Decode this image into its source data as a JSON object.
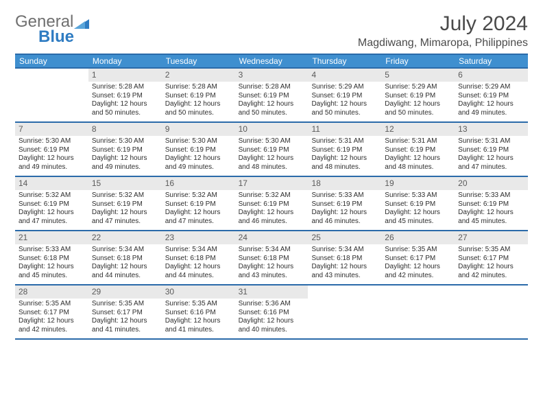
{
  "brand": {
    "part1": "General",
    "part2": "Blue"
  },
  "title": "July 2024",
  "location": "Magdiwang, Mimaropa, Philippines",
  "colors": {
    "header_bg": "#3f8fcf",
    "header_border": "#2a6aa9",
    "daynum_bg": "#e9e9e9",
    "text": "#333333",
    "brand_gray": "#6f6f6f",
    "brand_blue": "#2f7cc2"
  },
  "weekday_labels": [
    "Sunday",
    "Monday",
    "Tuesday",
    "Wednesday",
    "Thursday",
    "Friday",
    "Saturday"
  ],
  "weeks": [
    [
      {
        "n": "",
        "sr": "",
        "ss": "",
        "dl": ""
      },
      {
        "n": "1",
        "sr": "5:28 AM",
        "ss": "6:19 PM",
        "dl": "12 hours and 50 minutes."
      },
      {
        "n": "2",
        "sr": "5:28 AM",
        "ss": "6:19 PM",
        "dl": "12 hours and 50 minutes."
      },
      {
        "n": "3",
        "sr": "5:28 AM",
        "ss": "6:19 PM",
        "dl": "12 hours and 50 minutes."
      },
      {
        "n": "4",
        "sr": "5:29 AM",
        "ss": "6:19 PM",
        "dl": "12 hours and 50 minutes."
      },
      {
        "n": "5",
        "sr": "5:29 AM",
        "ss": "6:19 PM",
        "dl": "12 hours and 50 minutes."
      },
      {
        "n": "6",
        "sr": "5:29 AM",
        "ss": "6:19 PM",
        "dl": "12 hours and 49 minutes."
      }
    ],
    [
      {
        "n": "7",
        "sr": "5:30 AM",
        "ss": "6:19 PM",
        "dl": "12 hours and 49 minutes."
      },
      {
        "n": "8",
        "sr": "5:30 AM",
        "ss": "6:19 PM",
        "dl": "12 hours and 49 minutes."
      },
      {
        "n": "9",
        "sr": "5:30 AM",
        "ss": "6:19 PM",
        "dl": "12 hours and 49 minutes."
      },
      {
        "n": "10",
        "sr": "5:30 AM",
        "ss": "6:19 PM",
        "dl": "12 hours and 48 minutes."
      },
      {
        "n": "11",
        "sr": "5:31 AM",
        "ss": "6:19 PM",
        "dl": "12 hours and 48 minutes."
      },
      {
        "n": "12",
        "sr": "5:31 AM",
        "ss": "6:19 PM",
        "dl": "12 hours and 48 minutes."
      },
      {
        "n": "13",
        "sr": "5:31 AM",
        "ss": "6:19 PM",
        "dl": "12 hours and 47 minutes."
      }
    ],
    [
      {
        "n": "14",
        "sr": "5:32 AM",
        "ss": "6:19 PM",
        "dl": "12 hours and 47 minutes."
      },
      {
        "n": "15",
        "sr": "5:32 AM",
        "ss": "6:19 PM",
        "dl": "12 hours and 47 minutes."
      },
      {
        "n": "16",
        "sr": "5:32 AM",
        "ss": "6:19 PM",
        "dl": "12 hours and 47 minutes."
      },
      {
        "n": "17",
        "sr": "5:32 AM",
        "ss": "6:19 PM",
        "dl": "12 hours and 46 minutes."
      },
      {
        "n": "18",
        "sr": "5:33 AM",
        "ss": "6:19 PM",
        "dl": "12 hours and 46 minutes."
      },
      {
        "n": "19",
        "sr": "5:33 AM",
        "ss": "6:19 PM",
        "dl": "12 hours and 45 minutes."
      },
      {
        "n": "20",
        "sr": "5:33 AM",
        "ss": "6:19 PM",
        "dl": "12 hours and 45 minutes."
      }
    ],
    [
      {
        "n": "21",
        "sr": "5:33 AM",
        "ss": "6:18 PM",
        "dl": "12 hours and 45 minutes."
      },
      {
        "n": "22",
        "sr": "5:34 AM",
        "ss": "6:18 PM",
        "dl": "12 hours and 44 minutes."
      },
      {
        "n": "23",
        "sr": "5:34 AM",
        "ss": "6:18 PM",
        "dl": "12 hours and 44 minutes."
      },
      {
        "n": "24",
        "sr": "5:34 AM",
        "ss": "6:18 PM",
        "dl": "12 hours and 43 minutes."
      },
      {
        "n": "25",
        "sr": "5:34 AM",
        "ss": "6:18 PM",
        "dl": "12 hours and 43 minutes."
      },
      {
        "n": "26",
        "sr": "5:35 AM",
        "ss": "6:17 PM",
        "dl": "12 hours and 42 minutes."
      },
      {
        "n": "27",
        "sr": "5:35 AM",
        "ss": "6:17 PM",
        "dl": "12 hours and 42 minutes."
      }
    ],
    [
      {
        "n": "28",
        "sr": "5:35 AM",
        "ss": "6:17 PM",
        "dl": "12 hours and 42 minutes."
      },
      {
        "n": "29",
        "sr": "5:35 AM",
        "ss": "6:17 PM",
        "dl": "12 hours and 41 minutes."
      },
      {
        "n": "30",
        "sr": "5:35 AM",
        "ss": "6:16 PM",
        "dl": "12 hours and 41 minutes."
      },
      {
        "n": "31",
        "sr": "5:36 AM",
        "ss": "6:16 PM",
        "dl": "12 hours and 40 minutes."
      },
      {
        "n": "",
        "sr": "",
        "ss": "",
        "dl": ""
      },
      {
        "n": "",
        "sr": "",
        "ss": "",
        "dl": ""
      },
      {
        "n": "",
        "sr": "",
        "ss": "",
        "dl": ""
      }
    ]
  ],
  "labels": {
    "sunrise": "Sunrise:",
    "sunset": "Sunset:",
    "daylight": "Daylight:"
  }
}
